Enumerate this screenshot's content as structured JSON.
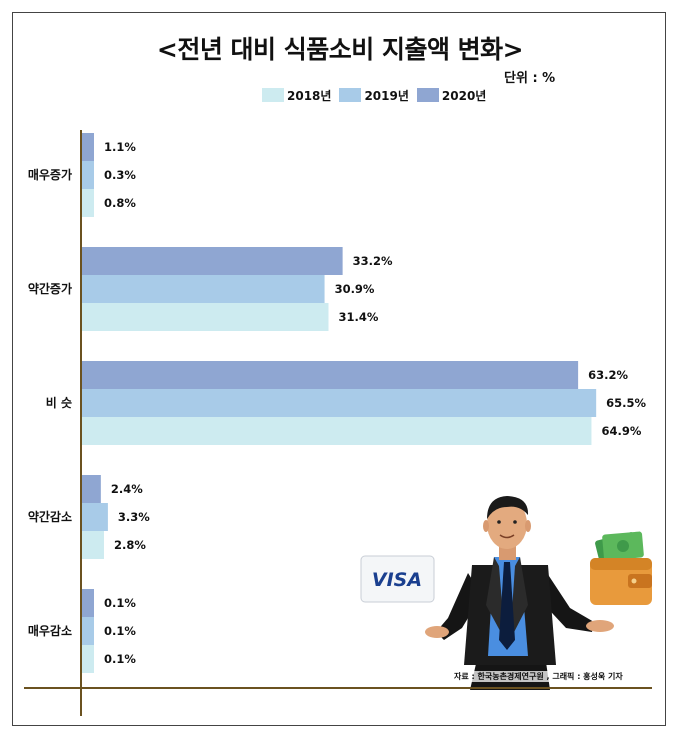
{
  "title": "<전년 대비 식품소비 지출액 변화>",
  "unit": "단위 : %",
  "source": "자료 : 한국농촌경제연구원 , 그래픽 : 홍성욱 기자",
  "card_text": "VISA",
  "legend": [
    {
      "label": "2018년",
      "color": "#cdebf0"
    },
    {
      "label": "2019년",
      "color": "#a8cbe8"
    },
    {
      "label": "2020년",
      "color": "#8fa6d2"
    }
  ],
  "chart_data": {
    "type": "bar",
    "orientation": "horizontal",
    "title": "<전년 대비 식품소비 지출액 변화>",
    "unit": "%",
    "categories": [
      "매우증가",
      "약간증가",
      "비 슷",
      "약간감소",
      "매우감소"
    ],
    "series": [
      {
        "name": "2020년",
        "color": "#8fa6d2",
        "values": [
          1.1,
          33.2,
          63.2,
          2.4,
          0.1
        ]
      },
      {
        "name": "2019년",
        "color": "#a8cbe8",
        "values": [
          0.3,
          30.9,
          65.5,
          3.3,
          0.1
        ]
      },
      {
        "name": "2018년",
        "color": "#cdebf0",
        "values": [
          0.8,
          31.4,
          64.9,
          2.8,
          0.1
        ]
      }
    ],
    "xlim": [
      0,
      70
    ],
    "grid": false,
    "legend_position": "top"
  }
}
